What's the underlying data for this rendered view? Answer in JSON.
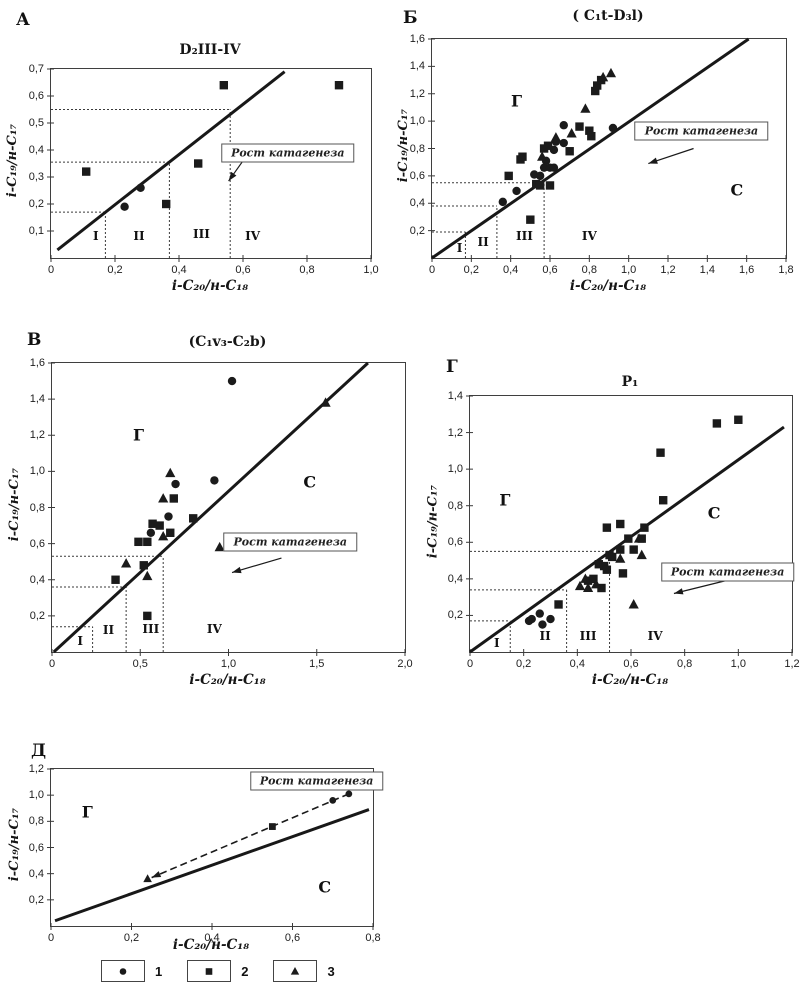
{
  "figure": {
    "description": "Five scatter plots of isoprenoid ratios i-C19/n-C17 vs i-C20/n-C18 with catagenesis growth annotation"
  },
  "annotation_text": "Рост катагенеза",
  "legend": {
    "items": [
      {
        "marker": "circle",
        "label": "1"
      },
      {
        "marker": "square",
        "label": "2"
      },
      {
        "marker": "triangle",
        "label": "3"
      }
    ]
  },
  "chart_data": [
    {
      "type": "scatter",
      "id": "a",
      "panel_label": "А",
      "title": "D₂III-IV",
      "xlabel": "i-C₂₀/н-C₁₈",
      "ylabel": "i-C₁₉/н-C₁₇",
      "xlim": [
        0,
        1.0
      ],
      "ylim": [
        0,
        0.7
      ],
      "xticks": [
        {
          "v": 0,
          "l": "0"
        },
        {
          "v": 0.2,
          "l": "0,2"
        },
        {
          "v": 0.4,
          "l": "0,4"
        },
        {
          "v": 0.6,
          "l": "0,6"
        },
        {
          "v": 0.8,
          "l": "0,8"
        },
        {
          "v": 1.0,
          "l": "1,0"
        }
      ],
      "yticks": [
        {
          "v": 0.1,
          "l": "0,1"
        },
        {
          "v": 0.2,
          "l": "0,2"
        },
        {
          "v": 0.3,
          "l": "0,3"
        },
        {
          "v": 0.4,
          "l": "0,4"
        },
        {
          "v": 0.5,
          "l": "0,5"
        },
        {
          "v": 0.6,
          "l": "0,6"
        },
        {
          "v": 0.7,
          "l": "0,7"
        }
      ],
      "ref_line": [
        0.02,
        0.03,
        0.73,
        0.69
      ],
      "zones": [
        [
          0.17,
          0.17
        ],
        [
          0.37,
          0.355
        ],
        [
          0.56,
          0.55
        ]
      ],
      "zone_labels": [
        {
          "t": "I",
          "x": 0.14,
          "y": 0.08
        },
        {
          "t": "II",
          "x": 0.275,
          "y": 0.08
        },
        {
          "t": "III",
          "x": 0.47,
          "y": 0.09
        },
        {
          "t": "IV",
          "x": 0.63,
          "y": 0.08
        }
      ],
      "region_labels": [],
      "annotation": {
        "text": "Рост катагенеза",
        "x": 0.74,
        "y": 0.39,
        "arrow": [
          0.6,
          0.36,
          0.555,
          0.285
        ]
      },
      "series": [
        {
          "name": "1",
          "marker": "circle",
          "points": [
            [
              0.23,
              0.19
            ],
            [
              0.28,
              0.26
            ]
          ]
        },
        {
          "name": "2",
          "marker": "square",
          "points": [
            [
              0.11,
              0.32
            ],
            [
              0.36,
              0.2
            ],
            [
              0.46,
              0.35
            ],
            [
              0.54,
              0.64
            ],
            [
              0.9,
              0.64
            ]
          ]
        },
        {
          "name": "3",
          "marker": "triangle",
          "points": []
        }
      ]
    },
    {
      "type": "scatter",
      "id": "b",
      "panel_label": "Б",
      "title": "( C₁t-D₃l)",
      "xlabel": "i-C₂₀/н-C₁₈",
      "ylabel": "i-C₁₉/н-C₁₇",
      "xlim": [
        0,
        1.8
      ],
      "ylim": [
        0,
        1.6
      ],
      "xticks": [
        {
          "v": 0,
          "l": "0"
        },
        {
          "v": 0.2,
          "l": "0,2"
        },
        {
          "v": 0.4,
          "l": "0,4"
        },
        {
          "v": 0.6,
          "l": "0,6"
        },
        {
          "v": 0.8,
          "l": "0,8"
        },
        {
          "v": 1.0,
          "l": "1,0"
        },
        {
          "v": 1.2,
          "l": "1,2"
        },
        {
          "v": 1.4,
          "l": "1,4"
        },
        {
          "v": 1.6,
          "l": "1,6"
        },
        {
          "v": 1.8,
          "l": "1,8"
        }
      ],
      "yticks": [
        {
          "v": 0.2,
          "l": "0,2"
        },
        {
          "v": 0.4,
          "l": "0,4"
        },
        {
          "v": 0.6,
          "l": "0,6"
        },
        {
          "v": 0.8,
          "l": "0,8"
        },
        {
          "v": 1.0,
          "l": "1,0"
        },
        {
          "v": 1.2,
          "l": "1,2"
        },
        {
          "v": 1.4,
          "l": "1,4"
        },
        {
          "v": 1.6,
          "l": "1,6"
        }
      ],
      "ref_line": [
        0.0,
        0.0,
        1.61,
        1.6
      ],
      "zones": [
        [
          0.17,
          0.19
        ],
        [
          0.33,
          0.38
        ],
        [
          0.57,
          0.55
        ]
      ],
      "zone_labels": [
        {
          "t": "I",
          "x": 0.14,
          "y": 0.07
        },
        {
          "t": "II",
          "x": 0.26,
          "y": 0.12
        },
        {
          "t": "III",
          "x": 0.47,
          "y": 0.16
        },
        {
          "t": "IV",
          "x": 0.8,
          "y": 0.16
        }
      ],
      "region_labels": [
        {
          "t": "Г",
          "x": 0.43,
          "y": 1.15
        },
        {
          "t": "С",
          "x": 1.55,
          "y": 0.5
        }
      ],
      "annotation": {
        "text": "Рост катагенеза",
        "x": 1.37,
        "y": 0.93,
        "arrow": [
          1.33,
          0.8,
          1.1,
          0.69
        ]
      },
      "series": [
        {
          "name": "1",
          "marker": "circle",
          "points": [
            [
              0.36,
              0.41
            ],
            [
              0.43,
              0.49
            ],
            [
              0.52,
              0.61
            ],
            [
              0.55,
              0.6
            ],
            [
              0.57,
              0.66
            ],
            [
              0.6,
              0.66
            ],
            [
              0.62,
              0.66
            ],
            [
              0.58,
              0.71
            ],
            [
              0.62,
              0.79
            ],
            [
              0.63,
              0.85
            ],
            [
              0.67,
              0.84
            ],
            [
              0.67,
              0.97
            ],
            [
              0.92,
              0.95
            ]
          ]
        },
        {
          "name": "2",
          "marker": "square",
          "points": [
            [
              0.39,
              0.6
            ],
            [
              0.45,
              0.72
            ],
            [
              0.46,
              0.74
            ],
            [
              0.5,
              0.28
            ],
            [
              0.53,
              0.54
            ],
            [
              0.55,
              0.53
            ],
            [
              0.57,
              0.8
            ],
            [
              0.59,
              0.82
            ],
            [
              0.6,
              0.53
            ],
            [
              0.7,
              0.78
            ],
            [
              0.75,
              0.96
            ],
            [
              0.8,
              0.93
            ],
            [
              0.81,
              0.89
            ],
            [
              0.83,
              1.22
            ],
            [
              0.84,
              1.26
            ],
            [
              0.86,
              1.3
            ]
          ]
        },
        {
          "name": "3",
          "marker": "triangle",
          "points": [
            [
              0.56,
              0.74
            ],
            [
              0.63,
              0.88
            ],
            [
              0.71,
              0.91
            ],
            [
              0.78,
              1.09
            ],
            [
              0.87,
              1.32
            ],
            [
              0.91,
              1.35
            ]
          ]
        }
      ]
    },
    {
      "type": "scatter",
      "id": "v",
      "panel_label": "В",
      "title": "(C₁v₃-C₂b)",
      "xlabel": "i-C₂₀/н-C₁₈",
      "ylabel": "i-C₁₉/н-C₁₇",
      "xlim": [
        0,
        2.0
      ],
      "ylim": [
        0,
        1.6
      ],
      "xticks": [
        {
          "v": 0,
          "l": "0"
        },
        {
          "v": 0.5,
          "l": "0,5"
        },
        {
          "v": 1.0,
          "l": "1,0"
        },
        {
          "v": 1.5,
          "l": "1,5"
        },
        {
          "v": 2.0,
          "l": "2,0"
        }
      ],
      "yticks": [
        {
          "v": 0.2,
          "l": "0,2"
        },
        {
          "v": 0.4,
          "l": "0,4"
        },
        {
          "v": 0.6,
          "l": "0,6"
        },
        {
          "v": 0.8,
          "l": "0,8"
        },
        {
          "v": 1.0,
          "l": "1,0"
        },
        {
          "v": 1.2,
          "l": "1,2"
        },
        {
          "v": 1.4,
          "l": "1,4"
        },
        {
          "v": 1.6,
          "l": "1,6"
        }
      ],
      "ref_line": [
        0.01,
        0.0,
        1.79,
        1.6
      ],
      "zones": [
        [
          0.23,
          0.14
        ],
        [
          0.42,
          0.36
        ],
        [
          0.63,
          0.53
        ]
      ],
      "zone_labels": [
        {
          "t": "I",
          "x": 0.16,
          "y": 0.06
        },
        {
          "t": "II",
          "x": 0.32,
          "y": 0.12
        },
        {
          "t": "III",
          "x": 0.56,
          "y": 0.13
        },
        {
          "t": "IV",
          "x": 0.92,
          "y": 0.13
        }
      ],
      "region_labels": [
        {
          "t": "Г",
          "x": 0.49,
          "y": 1.2
        },
        {
          "t": "С",
          "x": 1.46,
          "y": 0.94
        }
      ],
      "annotation": {
        "text": "Рост катагенеза",
        "x": 1.35,
        "y": 0.61,
        "arrow": [
          1.3,
          0.52,
          1.02,
          0.44
        ]
      },
      "series": [
        {
          "name": "1",
          "marker": "circle",
          "points": [
            [
              0.56,
              0.66
            ],
            [
              0.66,
              0.75
            ],
            [
              0.7,
              0.93
            ],
            [
              0.92,
              0.95
            ],
            [
              1.02,
              1.5
            ]
          ]
        },
        {
          "name": "2",
          "marker": "square",
          "points": [
            [
              0.36,
              0.4
            ],
            [
              0.49,
              0.61
            ],
            [
              0.52,
              0.48
            ],
            [
              0.54,
              0.2
            ],
            [
              0.54,
              0.61
            ],
            [
              0.57,
              0.71
            ],
            [
              0.61,
              0.7
            ],
            [
              0.67,
              0.66
            ],
            [
              0.69,
              0.85
            ],
            [
              0.8,
              0.74
            ]
          ]
        },
        {
          "name": "3",
          "marker": "triangle",
          "points": [
            [
              0.42,
              0.49
            ],
            [
              0.54,
              0.42
            ],
            [
              0.63,
              0.64
            ],
            [
              0.63,
              0.85
            ],
            [
              0.67,
              0.99
            ],
            [
              0.95,
              0.58
            ],
            [
              1.55,
              1.38
            ]
          ]
        }
      ]
    },
    {
      "type": "scatter",
      "id": "g",
      "panel_label": "Г",
      "title": "P₁",
      "xlabel": "i-C₂₀/н-C₁₈",
      "ylabel": "i-C₁₉/н-C₁₇",
      "xlim": [
        0,
        1.2
      ],
      "ylim": [
        0,
        1.4
      ],
      "xticks": [
        {
          "v": 0,
          "l": "0"
        },
        {
          "v": 0.2,
          "l": "0,2"
        },
        {
          "v": 0.4,
          "l": "0,4"
        },
        {
          "v": 0.6,
          "l": "0,6"
        },
        {
          "v": 0.8,
          "l": "0,8"
        },
        {
          "v": 1.0,
          "l": "1,0"
        },
        {
          "v": 1.2,
          "l": "1,2"
        }
      ],
      "yticks": [
        {
          "v": 0.2,
          "l": "0,2"
        },
        {
          "v": 0.4,
          "l": "0,4"
        },
        {
          "v": 0.6,
          "l": "0,6"
        },
        {
          "v": 0.8,
          "l": "0,8"
        },
        {
          "v": 1.0,
          "l": "1,0"
        },
        {
          "v": 1.2,
          "l": "1,2"
        },
        {
          "v": 1.4,
          "l": "1,4"
        }
      ],
      "ref_line": [
        0.0,
        0.0,
        1.17,
        1.23
      ],
      "zones": [
        [
          0.15,
          0.17
        ],
        [
          0.36,
          0.34
        ],
        [
          0.52,
          0.55
        ]
      ],
      "zone_labels": [
        {
          "t": "I",
          "x": 0.1,
          "y": 0.05
        },
        {
          "t": "II",
          "x": 0.28,
          "y": 0.09
        },
        {
          "t": "III",
          "x": 0.44,
          "y": 0.09
        },
        {
          "t": "IV",
          "x": 0.69,
          "y": 0.09
        }
      ],
      "region_labels": [
        {
          "t": "Г",
          "x": 0.13,
          "y": 0.83
        },
        {
          "t": "С",
          "x": 0.91,
          "y": 0.76
        }
      ],
      "annotation": {
        "text": "Рост катагенеза",
        "x": 0.96,
        "y": 0.44,
        "arrow": [
          0.98,
          0.4,
          0.76,
          0.32
        ]
      },
      "series": [
        {
          "name": "1",
          "marker": "circle",
          "points": [
            [
              0.22,
              0.17
            ],
            [
              0.23,
              0.18
            ],
            [
              0.26,
              0.21
            ],
            [
              0.27,
              0.15
            ],
            [
              0.3,
              0.18
            ]
          ]
        },
        {
          "name": "2",
          "marker": "square",
          "points": [
            [
              0.33,
              0.26
            ],
            [
              0.44,
              0.39
            ],
            [
              0.46,
              0.4
            ],
            [
              0.48,
              0.48
            ],
            [
              0.49,
              0.35
            ],
            [
              0.5,
              0.47
            ],
            [
              0.51,
              0.45
            ],
            [
              0.51,
              0.68
            ],
            [
              0.52,
              0.53
            ],
            [
              0.53,
              0.52
            ],
            [
              0.56,
              0.56
            ],
            [
              0.56,
              0.7
            ],
            [
              0.57,
              0.43
            ],
            [
              0.59,
              0.62
            ],
            [
              0.61,
              0.56
            ],
            [
              0.64,
              0.62
            ],
            [
              0.65,
              0.68
            ],
            [
              0.71,
              1.09
            ],
            [
              0.72,
              0.83
            ],
            [
              0.92,
              1.25
            ],
            [
              1.0,
              1.27
            ]
          ]
        },
        {
          "name": "3",
          "marker": "triangle",
          "points": [
            [
              0.41,
              0.36
            ],
            [
              0.43,
              0.4
            ],
            [
              0.44,
              0.35
            ],
            [
              0.47,
              0.37
            ],
            [
              0.56,
              0.51
            ],
            [
              0.61,
              0.26
            ],
            [
              0.63,
              0.62
            ],
            [
              0.64,
              0.53
            ]
          ]
        }
      ]
    },
    {
      "type": "scatter",
      "id": "d",
      "panel_label": "Д",
      "title": "",
      "xlabel": "i-C₂₀/н-C₁₈",
      "ylabel": "i-C₁₉/н-C₁₇",
      "xlim": [
        0,
        0.8
      ],
      "ylim": [
        0,
        1.2
      ],
      "xticks": [
        {
          "v": 0,
          "l": "0"
        },
        {
          "v": 0.2,
          "l": "0,2"
        },
        {
          "v": 0.4,
          "l": "0,4"
        },
        {
          "v": 0.6,
          "l": "0,6"
        },
        {
          "v": 0.8,
          "l": "0,8"
        }
      ],
      "yticks": [
        {
          "v": 0.2,
          "l": "0,2"
        },
        {
          "v": 0.4,
          "l": "0,4"
        },
        {
          "v": 0.6,
          "l": "0,6"
        },
        {
          "v": 0.8,
          "l": "0,8"
        },
        {
          "v": 1.0,
          "l": "1,0"
        },
        {
          "v": 1.2,
          "l": "1,2"
        }
      ],
      "ref_line": [
        0.01,
        0.04,
        0.79,
        0.89
      ],
      "zones": [],
      "zone_labels": [],
      "region_labels": [
        {
          "t": "Г",
          "x": 0.09,
          "y": 0.87
        },
        {
          "t": "С",
          "x": 0.68,
          "y": 0.3
        }
      ],
      "annotation": {
        "text": "Рост катагенеза",
        "x": 0.66,
        "y": 1.11,
        "arrow": null
      },
      "series": [],
      "trend": {
        "from": [
          0.74,
          1.01
        ],
        "to": [
          0.25,
          0.37
        ],
        "arrow_at_end": true,
        "points": [
          {
            "x": 0.74,
            "y": 1.01,
            "marker": "circle"
          },
          {
            "x": 0.7,
            "y": 0.96,
            "marker": "circle"
          },
          {
            "x": 0.55,
            "y": 0.76,
            "marker": "square"
          },
          {
            "x": 0.24,
            "y": 0.36,
            "marker": "triangle"
          }
        ]
      }
    }
  ]
}
